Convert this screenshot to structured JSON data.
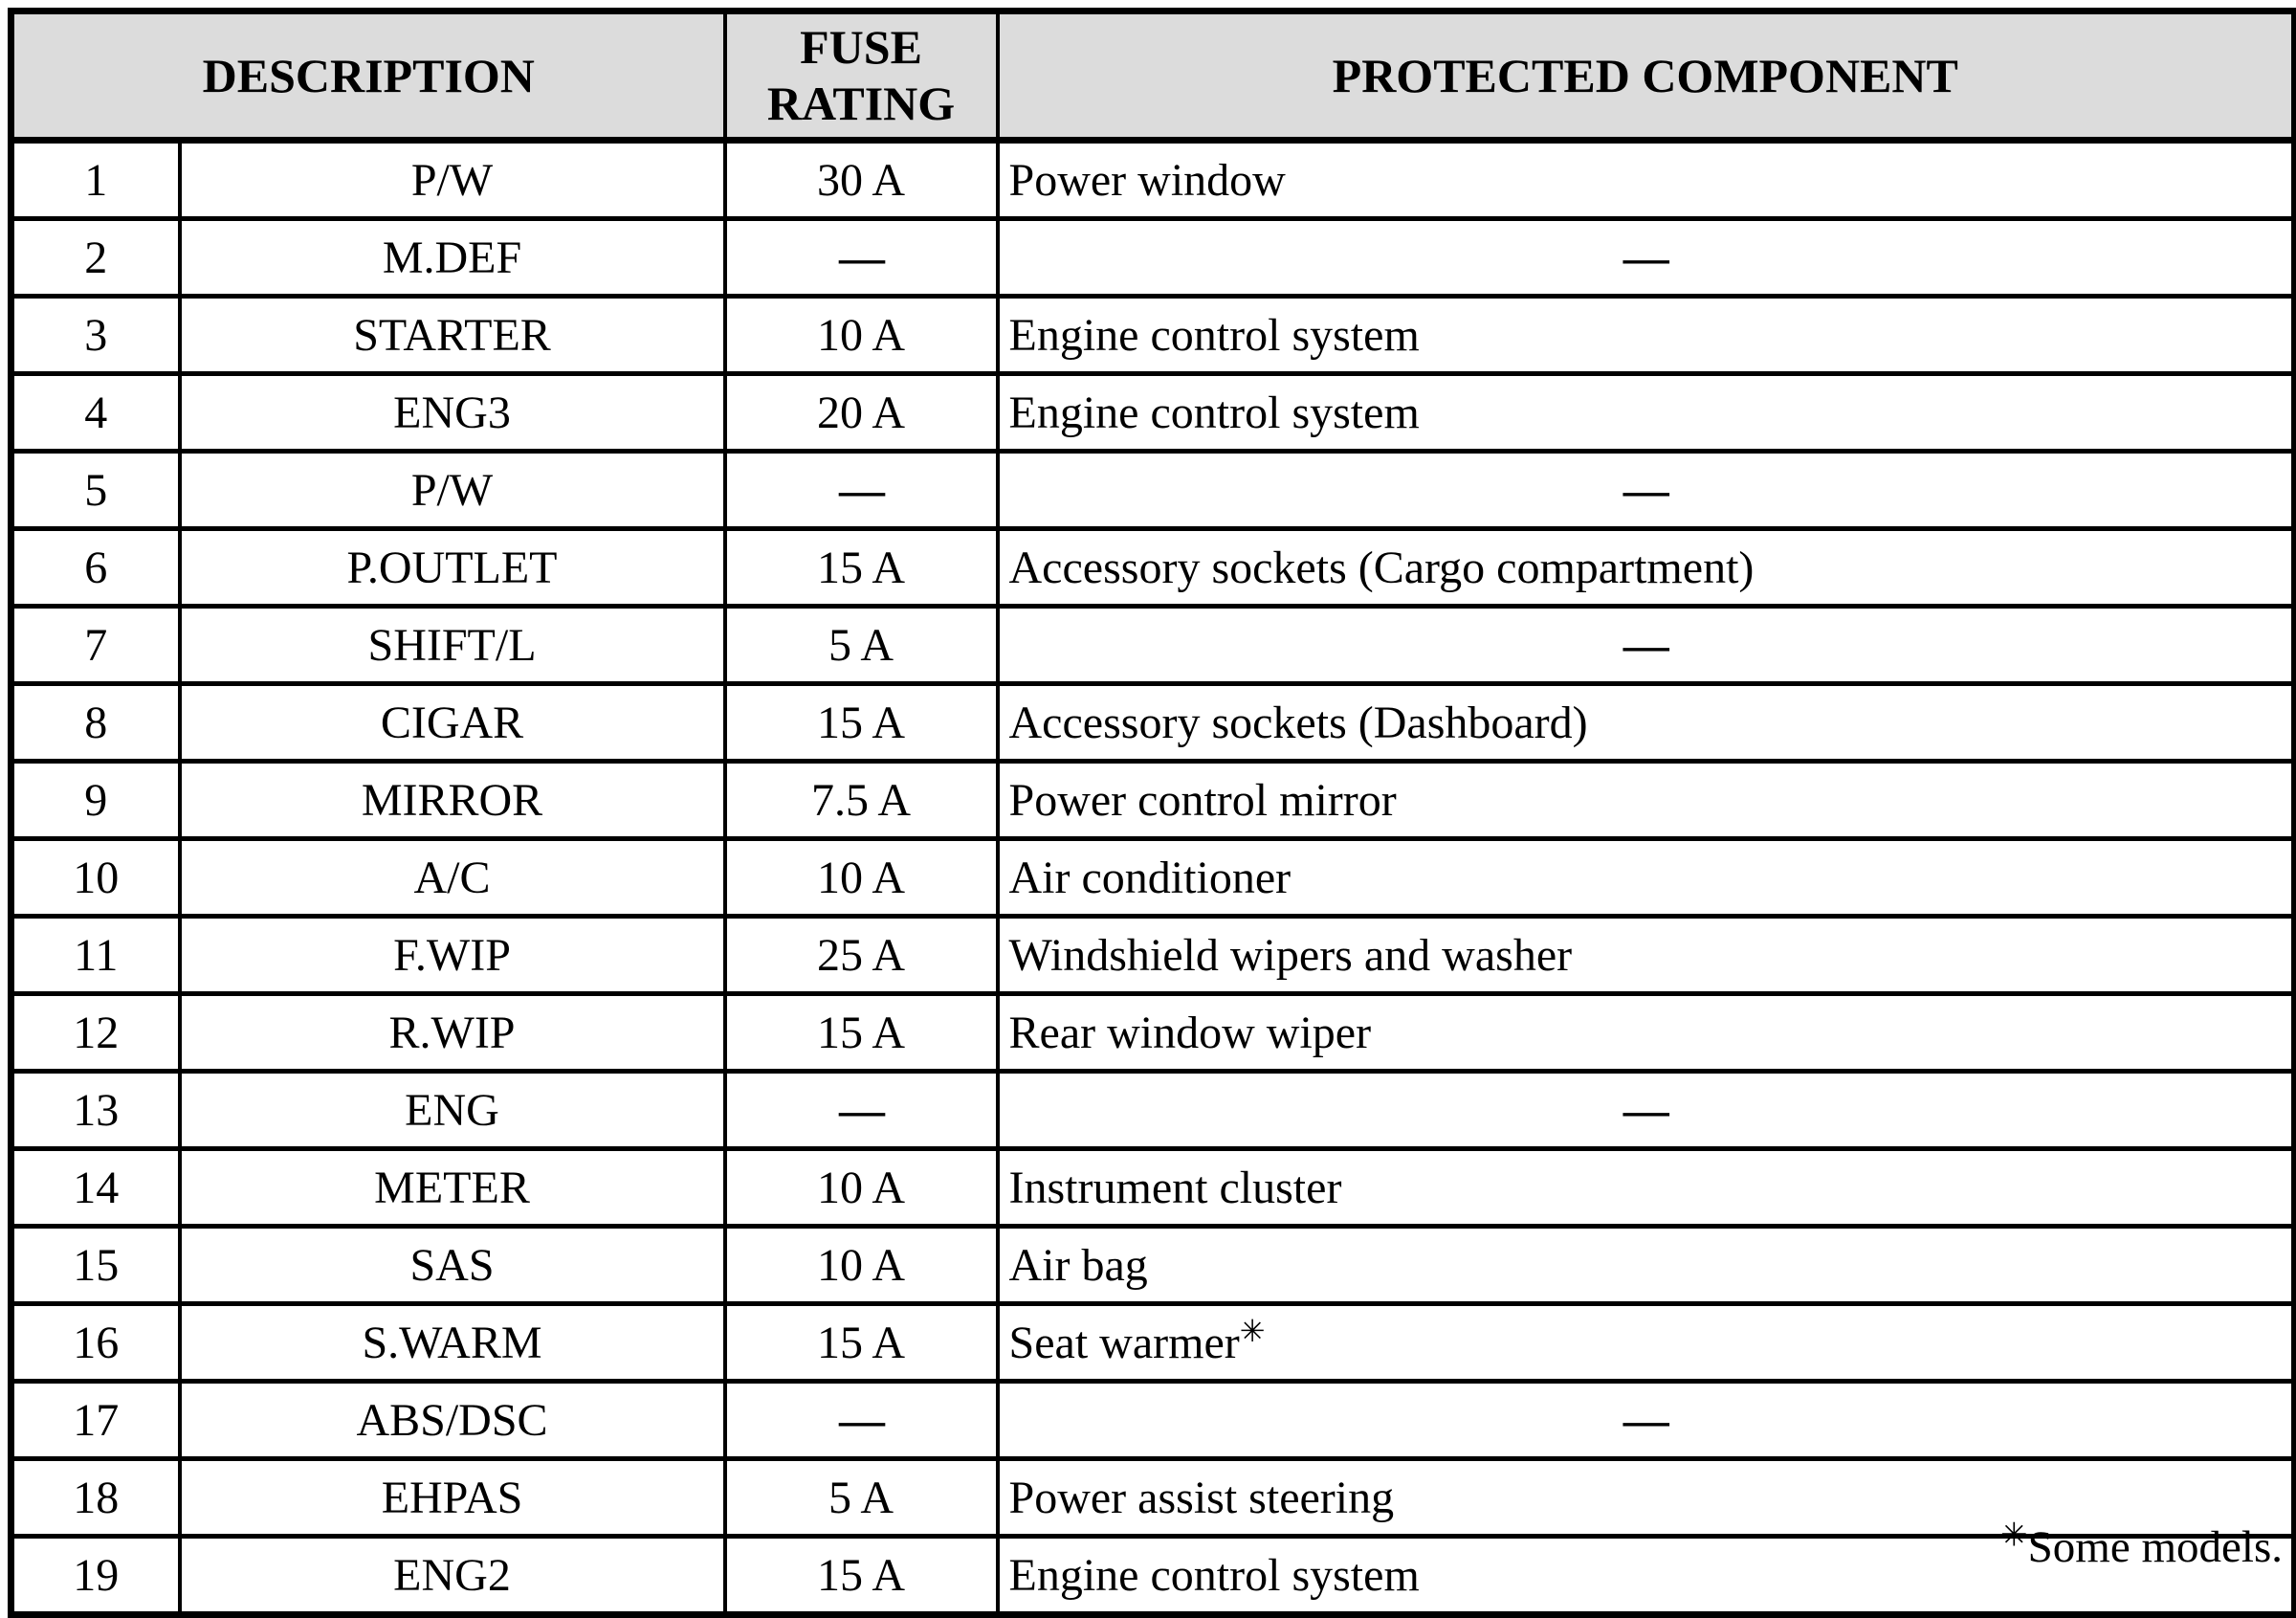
{
  "colors": {
    "page_bg": "#ffffff",
    "header_bg": "#dcdcdc",
    "border": "#000000",
    "ink": "#000000"
  },
  "table": {
    "dash": "—",
    "headers": {
      "description": "DESCRIPTION",
      "fuse_rating": "FUSE\nRATING",
      "protected_component": "PROTECTED COMPONENT"
    },
    "rows": [
      {
        "num": "1",
        "name": "P/W",
        "rating": "30 A",
        "component": "Power window"
      },
      {
        "num": "2",
        "name": "M.DEF",
        "rating": "—",
        "component": "—"
      },
      {
        "num": "3",
        "name": "STARTER",
        "rating": "10 A",
        "component": "Engine control system"
      },
      {
        "num": "4",
        "name": "ENG3",
        "rating": "20 A",
        "component": "Engine control system"
      },
      {
        "num": "5",
        "name": "P/W",
        "rating": "—",
        "component": "—"
      },
      {
        "num": "6",
        "name": "P.OUTLET",
        "rating": "15 A",
        "component": "Accessory sockets (Cargo compartment)"
      },
      {
        "num": "7",
        "name": "SHIFT/L",
        "rating": "5 A",
        "component": "—"
      },
      {
        "num": "8",
        "name": "CIGAR",
        "rating": "15 A",
        "component": "Accessory sockets (Dashboard)"
      },
      {
        "num": "9",
        "name": "MIRROR",
        "rating": "7.5 A",
        "component": "Power control mirror"
      },
      {
        "num": "10",
        "name": "A/C",
        "rating": "10 A",
        "component": "Air conditioner"
      },
      {
        "num": "11",
        "name": "F.WIP",
        "rating": "25 A",
        "component": "Windshield wipers and washer"
      },
      {
        "num": "12",
        "name": "R.WIP",
        "rating": "15 A",
        "component": "Rear window wiper"
      },
      {
        "num": "13",
        "name": "ENG",
        "rating": "—",
        "component": "—"
      },
      {
        "num": "14",
        "name": "METER",
        "rating": "10 A",
        "component": "Instrument cluster"
      },
      {
        "num": "15",
        "name": "SAS",
        "rating": "10 A",
        "component": "Air bag"
      },
      {
        "num": "16",
        "name": "S.WARM",
        "rating": "15 A",
        "component": "Seat warmer",
        "component_note": "✳"
      },
      {
        "num": "17",
        "name": "ABS/DSC",
        "rating": "—",
        "component": "—"
      },
      {
        "num": "18",
        "name": "EHPAS",
        "rating": "5 A",
        "component": "Power assist steering"
      },
      {
        "num": "19",
        "name": "ENG2",
        "rating": "15 A",
        "component": "Engine control system"
      }
    ]
  },
  "footnote": {
    "marker": "✳",
    "text": "Some models."
  }
}
